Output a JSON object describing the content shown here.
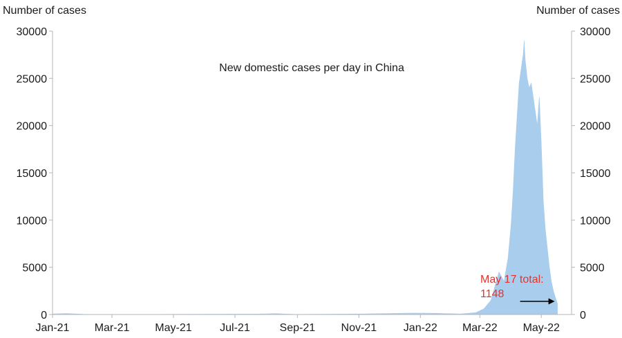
{
  "chart_data": {
    "type": "area",
    "title": "New domestic cases per day in China",
    "y_axis_left_label": "Number of cases",
    "y_axis_right_label": "Number of cases",
    "ylim": [
      0,
      30000
    ],
    "y_ticks": [
      "0",
      "5000",
      "10000",
      "15000",
      "20000",
      "25000",
      "30000"
    ],
    "x_ticks": [
      "Jan-21",
      "Mar-21",
      "May-21",
      "Jul-21",
      "Sep-21",
      "Nov-21",
      "Jan-22",
      "Mar-22",
      "May-22"
    ],
    "x_tick_dates": [
      "2021-01-01",
      "2021-03-01",
      "2021-05-01",
      "2021-07-01",
      "2021-09-01",
      "2021-11-01",
      "2022-01-01",
      "2022-03-01",
      "2022-05-01"
    ],
    "x_range": [
      "2021-01-01",
      "2022-05-31"
    ],
    "grid": false,
    "series": [
      {
        "color": "#a9cdec",
        "points": [
          [
            "2021-01-01",
            60
          ],
          [
            "2021-01-15",
            110
          ],
          [
            "2021-02-01",
            20
          ],
          [
            "2021-04-01",
            8
          ],
          [
            "2021-07-25",
            50
          ],
          [
            "2021-08-10",
            100
          ],
          [
            "2021-08-30",
            10
          ],
          [
            "2021-11-05",
            60
          ],
          [
            "2021-12-25",
            150
          ],
          [
            "2022-01-15",
            130
          ],
          [
            "2022-02-10",
            60
          ],
          [
            "2022-02-25",
            200
          ],
          [
            "2022-03-05",
            600
          ],
          [
            "2022-03-12",
            1500
          ],
          [
            "2022-03-16",
            3000
          ],
          [
            "2022-03-20",
            4500
          ],
          [
            "2022-03-25",
            3500
          ],
          [
            "2022-03-29",
            6000
          ],
          [
            "2022-04-01",
            9500
          ],
          [
            "2022-04-03",
            13000
          ],
          [
            "2022-04-05",
            17500
          ],
          [
            "2022-04-07",
            21000
          ],
          [
            "2022-04-09",
            24500
          ],
          [
            "2022-04-11",
            26000
          ],
          [
            "2022-04-13",
            27500
          ],
          [
            "2022-04-14",
            29000
          ],
          [
            "2022-04-15",
            27000
          ],
          [
            "2022-04-17",
            25000
          ],
          [
            "2022-04-19",
            24000
          ],
          [
            "2022-04-21",
            24500
          ],
          [
            "2022-04-23",
            23000
          ],
          [
            "2022-04-25",
            21500
          ],
          [
            "2022-04-27",
            20000
          ],
          [
            "2022-04-29",
            23000
          ],
          [
            "2022-05-01",
            18000
          ],
          [
            "2022-05-03",
            12000
          ],
          [
            "2022-05-05",
            9000
          ],
          [
            "2022-05-07",
            7000
          ],
          [
            "2022-05-09",
            5000
          ],
          [
            "2022-05-11",
            3500
          ],
          [
            "2022-05-13",
            2500
          ],
          [
            "2022-05-15",
            1800
          ],
          [
            "2022-05-17",
            1148
          ]
        ]
      }
    ],
    "annotations": [
      {
        "text_line1": "May 17 total:",
        "text_line2": "1148",
        "color": "#e2342f",
        "arrow_to_date": "2022-05-17"
      }
    ]
  }
}
